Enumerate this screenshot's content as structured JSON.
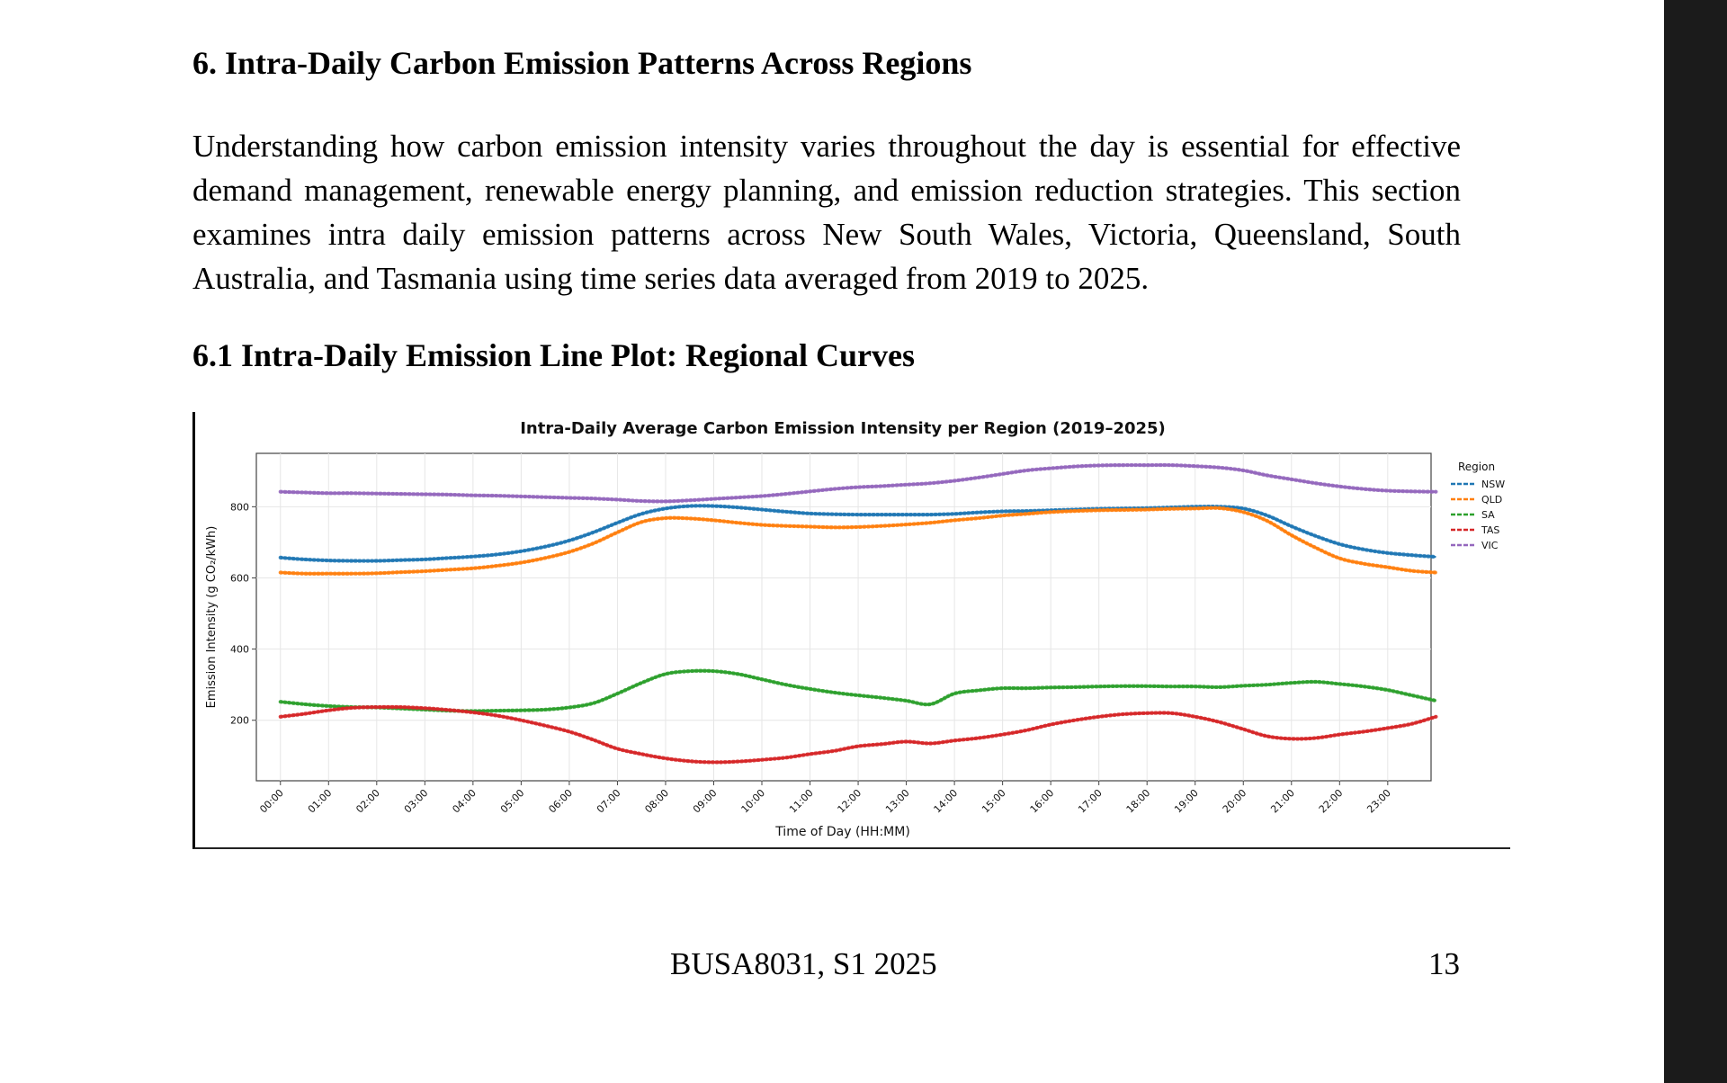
{
  "section": {
    "title": "6. Intra-Daily Carbon Emission Patterns Across Regions",
    "intro": "Understanding how carbon emission intensity varies throughout the day is essential for effective demand management, renewable energy planning, and emission reduction strategies. This section examines intra daily emission patterns across New South Wales, Victoria, Queensland, South Australia, and Tasmania using time series data averaged from 2019 to 2025.",
    "subsection_title": "6.1 Intra-Daily Emission Line Plot: Regional Curves"
  },
  "chart_data": {
    "type": "line",
    "title": "Intra-Daily Average Carbon Emission Intensity per Region (2019–2025)",
    "xlabel": "Time of Day (HH:MM)",
    "ylabel": "Emission Intensity (g CO₂/kWh)",
    "xlim": [
      -0.5,
      23.9
    ],
    "ylim": [
      30,
      950
    ],
    "grid": true,
    "legend_title": "Region",
    "legend_position": "outside-right-top",
    "x_ticks": [
      "00:00",
      "01:00",
      "02:00",
      "03:00",
      "04:00",
      "05:00",
      "06:00",
      "07:00",
      "08:00",
      "09:00",
      "10:00",
      "11:00",
      "12:00",
      "13:00",
      "14:00",
      "15:00",
      "16:00",
      "17:00",
      "18:00",
      "19:00",
      "20:00",
      "21:00",
      "22:00",
      "23:00"
    ],
    "y_ticks": [
      200,
      400,
      600,
      800
    ],
    "x": [
      0,
      0.5,
      1,
      1.5,
      2,
      2.5,
      3,
      3.5,
      4,
      4.5,
      5,
      5.5,
      6,
      6.5,
      7,
      7.5,
      8,
      8.5,
      9,
      9.5,
      10,
      10.5,
      11,
      11.5,
      12,
      12.5,
      13,
      13.5,
      14,
      14.5,
      15,
      15.5,
      16,
      16.5,
      17,
      17.5,
      18,
      18.5,
      19,
      19.5,
      20,
      20.5,
      21,
      21.5,
      22,
      22.5,
      23,
      23.5,
      24
    ],
    "series": [
      {
        "name": "NSW",
        "color": "#1f77b4",
        "values": [
          657,
          652,
          649,
          648,
          648,
          650,
          652,
          656,
          660,
          666,
          675,
          688,
          705,
          728,
          755,
          780,
          795,
          802,
          802,
          798,
          792,
          786,
          781,
          779,
          778,
          778,
          778,
          778,
          780,
          784,
          787,
          788,
          790,
          792,
          794,
          795,
          796,
          798,
          800,
          800,
          795,
          775,
          745,
          718,
          695,
          680,
          670,
          664,
          659
        ]
      },
      {
        "name": "QLD",
        "color": "#ff7f0e",
        "values": [
          615,
          612,
          612,
          612,
          613,
          616,
          619,
          623,
          627,
          634,
          643,
          656,
          673,
          697,
          728,
          757,
          768,
          767,
          762,
          755,
          749,
          746,
          744,
          742,
          743,
          746,
          750,
          755,
          762,
          768,
          775,
          780,
          785,
          788,
          790,
          791,
          792,
          794,
          795,
          796,
          785,
          760,
          720,
          685,
          655,
          640,
          630,
          620,
          615
        ]
      },
      {
        "name": "SA",
        "color": "#2ca02c",
        "values": [
          252,
          245,
          240,
          237,
          236,
          233,
          230,
          227,
          226,
          227,
          228,
          230,
          236,
          248,
          275,
          305,
          330,
          338,
          338,
          330,
          315,
          300,
          288,
          278,
          270,
          263,
          255,
          245,
          275,
          284,
          290,
          290,
          292,
          293,
          295,
          296,
          296,
          295,
          295,
          293,
          297,
          300,
          305,
          308,
          302,
          295,
          285,
          270,
          255
        ]
      },
      {
        "name": "TAS",
        "color": "#d62728",
        "values": [
          210,
          218,
          228,
          235,
          237,
          237,
          234,
          229,
          222,
          213,
          200,
          185,
          168,
          145,
          120,
          105,
          93,
          85,
          82,
          84,
          89,
          95,
          105,
          114,
          127,
          133,
          140,
          135,
          143,
          150,
          160,
          172,
          188,
          200,
          210,
          217,
          220,
          220,
          210,
          195,
          175,
          155,
          148,
          150,
          160,
          168,
          178,
          190,
          210
        ]
      },
      {
        "name": "VIC",
        "color": "#9467bd",
        "values": [
          842,
          840,
          838,
          838,
          837,
          836,
          835,
          834,
          832,
          831,
          829,
          827,
          825,
          823,
          820,
          816,
          815,
          818,
          822,
          826,
          830,
          836,
          843,
          850,
          855,
          858,
          862,
          866,
          873,
          882,
          892,
          902,
          908,
          913,
          916,
          917,
          917,
          917,
          914,
          910,
          902,
          888,
          877,
          866,
          857,
          850,
          845,
          843,
          842
        ]
      }
    ]
  },
  "footer": {
    "course": "BUSA8031, S1 2025",
    "page_number": "13"
  }
}
